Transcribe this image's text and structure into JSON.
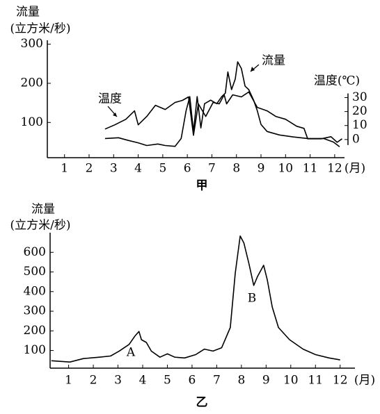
{
  "chart_data": [
    {
      "type": "line",
      "caption": "甲",
      "y_label": "流量",
      "y_unit": "(立方米/秒)",
      "y2_label": "温度(℃)",
      "x_label": "(月)",
      "xlim": [
        0.3,
        12.4
      ],
      "xticks": [
        1,
        2,
        3,
        4,
        5,
        6,
        7,
        8,
        9,
        10,
        11,
        12
      ],
      "ylim": [
        10,
        310
      ],
      "yticks": [
        100,
        200,
        300
      ],
      "y2lim": [
        -13,
        71
      ],
      "y2ticks": [
        0,
        10,
        20,
        30
      ],
      "series": [
        {
          "name": "流量",
          "color": "#000000",
          "x": [
            2.65,
            3.2,
            3.6,
            4.0,
            4.35,
            4.8,
            5.1,
            5.5,
            5.75,
            5.95,
            6.1,
            6.25,
            6.4,
            6.55,
            6.7,
            6.95,
            7.2,
            7.4,
            7.55,
            7.65,
            7.8,
            7.95,
            8.05,
            8.2,
            8.35,
            8.5,
            8.7,
            8.85,
            9.0,
            9.25,
            9.75,
            10.3,
            10.9,
            11.55,
            11.95,
            12.2
          ],
          "values": [
            59,
            61,
            54,
            48,
            41,
            45,
            41,
            39,
            59,
            130,
            166,
            77,
            166,
            86,
            148,
            157,
            148,
            166,
            175,
            229,
            184,
            211,
            255,
            238,
            193,
            184,
            157,
            130,
            95,
            77,
            68,
            63,
            59,
            59,
            50,
            38
          ]
        },
        {
          "name": "温度",
          "color": "#000000",
          "axis": "y2",
          "x": [
            2.65,
            3.05,
            3.5,
            3.85,
            4.0,
            4.35,
            4.7,
            5.1,
            5.5,
            5.8,
            6.05,
            6.25,
            6.45,
            6.75,
            7.05,
            7.3,
            7.5,
            7.6,
            7.85,
            8.2,
            8.5,
            8.85,
            9.25,
            9.6,
            10.0,
            10.45,
            10.75,
            10.9,
            11.45,
            11.85,
            12.1,
            12.3
          ],
          "values": [
            7.5,
            10.5,
            14.5,
            20.5,
            10.5,
            16.5,
            24.5,
            21.5,
            26.5,
            28,
            30.5,
            3,
            25.5,
            16.5,
            26.5,
            25.5,
            32,
            25.5,
            32,
            30.5,
            34,
            23,
            20.5,
            16.5,
            14.5,
            9.5,
            8,
            0.5,
            0.5,
            2,
            -2,
            0.5
          ]
        }
      ]
    },
    {
      "type": "line",
      "caption": "乙",
      "y_label": "流量",
      "y_unit": "(立方米/秒)",
      "x_label": "(月)",
      "annotations": [
        "A",
        "B"
      ],
      "xlim": [
        0.25,
        12.6
      ],
      "xticks": [
        1,
        2,
        3,
        4,
        5,
        6,
        7,
        8,
        9,
        10,
        11,
        12
      ],
      "ylim": [
        10,
        700
      ],
      "yticks": [
        100,
        200,
        300,
        400,
        500,
        600
      ],
      "series": [
        {
          "color": "#000000",
          "x": [
            0.3,
            1.05,
            1.6,
            2.25,
            2.7,
            3.05,
            3.45,
            3.7,
            3.85,
            3.95,
            4.15,
            4.35,
            4.7,
            5.0,
            5.3,
            5.7,
            6.15,
            6.5,
            6.85,
            7.2,
            7.55,
            7.75,
            7.95,
            8.1,
            8.3,
            8.5,
            8.65,
            8.9,
            9.05,
            9.25,
            9.5,
            9.95,
            10.5,
            11.0,
            11.55,
            12.0
          ],
          "values": [
            48,
            41,
            59,
            66,
            72,
            97,
            131,
            176,
            197,
            155,
            141,
            97,
            66,
            83,
            66,
            62,
            79,
            107,
            97,
            114,
            217,
            493,
            683,
            648,
            545,
            431,
            476,
            534,
            459,
            321,
            217,
            155,
            107,
            79,
            62,
            52
          ]
        }
      ]
    }
  ]
}
